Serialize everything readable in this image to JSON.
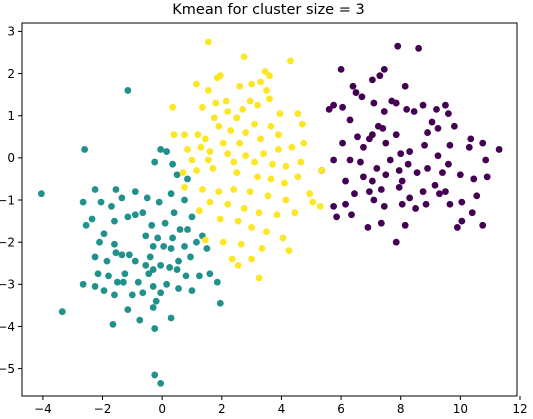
{
  "chart_data": {
    "type": "scatter",
    "title": "Kmean for cluster size = 3",
    "xlabel": "",
    "ylabel": "",
    "xlim": [
      -4.7,
      11.9
    ],
    "ylim": [
      -5.65,
      3.2
    ],
    "xticks": [
      -4,
      -2,
      0,
      2,
      4,
      6,
      8,
      10,
      12
    ],
    "yticks": [
      -5,
      -4,
      -3,
      -2,
      -1,
      0,
      1,
      2,
      3
    ],
    "xtick_labels": [
      "−4",
      "−2",
      "0",
      "2",
      "4",
      "6",
      "8",
      "10",
      "12"
    ],
    "ytick_labels": [
      "−5",
      "−4",
      "−3",
      "−2",
      "−1",
      "0",
      "1",
      "2",
      "3"
    ],
    "grid": false,
    "legend": "none",
    "series": [
      {
        "color": "#440154",
        "points": [
          [
            8.6,
            2.6
          ],
          [
            7.9,
            2.65
          ],
          [
            7.3,
            1.95
          ],
          [
            7.45,
            2.1
          ],
          [
            8.15,
            1.7
          ],
          [
            6.0,
            2.1
          ],
          [
            6.4,
            1.7
          ],
          [
            7.05,
            1.85
          ],
          [
            6.7,
            1.45
          ],
          [
            6.5,
            1.55
          ],
          [
            5.75,
            1.25
          ],
          [
            5.6,
            1.15
          ],
          [
            6.05,
            1.2
          ],
          [
            6.3,
            0.9
          ],
          [
            6.55,
            0.5
          ],
          [
            6.05,
            0.35
          ],
          [
            7.1,
            1.3
          ],
          [
            7.45,
            1.1
          ],
          [
            7.7,
            1.35
          ],
          [
            7.85,
            1.3
          ],
          [
            8.2,
            1.15
          ],
          [
            8.45,
            1.1
          ],
          [
            8.75,
            1.25
          ],
          [
            9.2,
            1.15
          ],
          [
            9.5,
            1.25
          ],
          [
            9.6,
            1.05
          ],
          [
            9.05,
            0.85
          ],
          [
            8.9,
            0.6
          ],
          [
            9.25,
            0.7
          ],
          [
            9.8,
            0.75
          ],
          [
            10.35,
            0.45
          ],
          [
            10.75,
            0.35
          ],
          [
            11.3,
            0.2
          ],
          [
            10.85,
            -0.05
          ],
          [
            10.3,
            0.25
          ],
          [
            9.65,
            0.3
          ],
          [
            9.25,
            0.05
          ],
          [
            8.8,
            0.3
          ],
          [
            8.3,
            0.15
          ],
          [
            7.85,
            0.55
          ],
          [
            7.25,
            0.75
          ],
          [
            6.95,
            0.45
          ],
          [
            6.75,
            0.25
          ],
          [
            7.5,
            0.35
          ],
          [
            8.0,
            0.1
          ],
          [
            7.05,
            0.55
          ],
          [
            7.4,
            0.7
          ],
          [
            7.65,
            -0.05
          ],
          [
            7.2,
            -0.25
          ],
          [
            6.65,
            -0.1
          ],
          [
            6.3,
            -0.05
          ],
          [
            5.75,
            -0.05
          ],
          [
            5.35,
            -0.3
          ],
          [
            6.15,
            -0.55
          ],
          [
            6.75,
            -0.45
          ],
          [
            7.5,
            -0.4
          ],
          [
            7.95,
            -0.3
          ],
          [
            8.25,
            -0.15
          ],
          [
            8.55,
            -0.35
          ],
          [
            8.9,
            -0.25
          ],
          [
            9.4,
            -0.35
          ],
          [
            9.6,
            -0.15
          ],
          [
            10.0,
            -0.4
          ],
          [
            10.45,
            -0.5
          ],
          [
            10.9,
            -0.45
          ],
          [
            10.55,
            -0.9
          ],
          [
            10.05,
            -1.05
          ],
          [
            9.5,
            -0.8
          ],
          [
            9.15,
            -0.65
          ],
          [
            8.75,
            -0.8
          ],
          [
            8.3,
            -0.95
          ],
          [
            7.95,
            -0.7
          ],
          [
            7.35,
            -0.75
          ],
          [
            6.95,
            -0.8
          ],
          [
            6.45,
            -0.85
          ],
          [
            6.15,
            -1.1
          ],
          [
            5.75,
            -1.15
          ],
          [
            5.85,
            -1.4
          ],
          [
            6.35,
            -1.35
          ],
          [
            7.1,
            -1.0
          ],
          [
            7.45,
            -1.15
          ],
          [
            8.05,
            -1.1
          ],
          [
            8.5,
            -1.2
          ],
          [
            8.85,
            -1.1
          ],
          [
            9.3,
            -0.85
          ],
          [
            9.65,
            -1.1
          ],
          [
            10.05,
            -1.5
          ],
          [
            10.4,
            -1.3
          ],
          [
            10.75,
            -1.6
          ],
          [
            9.9,
            -1.65
          ],
          [
            8.15,
            -1.6
          ],
          [
            7.35,
            -1.55
          ],
          [
            6.9,
            -1.65
          ],
          [
            7.85,
            -2.0
          ],
          [
            7.05,
            -0.55
          ],
          [
            8.05,
            -0.55
          ]
        ]
      },
      {
        "color": "#21918c",
        "points": [
          [
            -1.15,
            1.6
          ],
          [
            -2.6,
            0.2
          ],
          [
            -4.05,
            -0.85
          ],
          [
            -2.25,
            -0.75
          ],
          [
            -1.55,
            -0.75
          ],
          [
            -2.65,
            -1.05
          ],
          [
            -2.05,
            -1.05
          ],
          [
            -1.35,
            -0.95
          ],
          [
            -0.9,
            -0.8
          ],
          [
            -1.7,
            -1.15
          ],
          [
            -0.65,
            -1.3
          ],
          [
            -0.9,
            -1.35
          ],
          [
            -1.15,
            -1.4
          ],
          [
            -1.6,
            -1.5
          ],
          [
            -2.35,
            -1.45
          ],
          [
            -2.55,
            -1.6
          ],
          [
            -1.95,
            -1.8
          ],
          [
            -2.1,
            -2.0
          ],
          [
            -1.6,
            -2.05
          ],
          [
            -0.55,
            -1.85
          ],
          [
            -0.35,
            -1.6
          ],
          [
            -0.5,
            -0.95
          ],
          [
            -0.25,
            -0.1
          ],
          [
            -0.05,
            0.2
          ],
          [
            0.15,
            0.15
          ],
          [
            0.35,
            -0.15
          ],
          [
            0.5,
            -0.4
          ],
          [
            0.85,
            -0.5
          ],
          [
            0.3,
            -0.85
          ],
          [
            0.75,
            -1.0
          ],
          [
            1.0,
            -1.4
          ],
          [
            0.4,
            -1.3
          ],
          [
            0.1,
            -1.55
          ],
          [
            0.6,
            -1.7
          ],
          [
            0.85,
            -1.7
          ],
          [
            -0.15,
            -1.9
          ],
          [
            -0.3,
            -2.1
          ],
          [
            0.05,
            -2.1
          ],
          [
            0.3,
            -2.15
          ],
          [
            0.75,
            -2.1
          ],
          [
            1.15,
            -2.0
          ],
          [
            1.35,
            -1.85
          ],
          [
            1.5,
            -2.15
          ],
          [
            0.95,
            -2.35
          ],
          [
            0.55,
            -2.45
          ],
          [
            0.25,
            -2.6
          ],
          [
            -0.05,
            -2.55
          ],
          [
            -0.3,
            -2.65
          ],
          [
            -0.55,
            -2.55
          ],
          [
            -0.9,
            -2.45
          ],
          [
            -1.1,
            -2.3
          ],
          [
            -1.35,
            -2.3
          ],
          [
            -1.55,
            -2.25
          ],
          [
            -1.85,
            -2.45
          ],
          [
            -2.25,
            -2.35
          ],
          [
            -2.15,
            -2.75
          ],
          [
            -1.8,
            -2.8
          ],
          [
            -1.5,
            -2.95
          ],
          [
            -1.25,
            -2.75
          ],
          [
            -1.3,
            -2.95
          ],
          [
            -0.8,
            -2.95
          ],
          [
            -0.45,
            -2.75
          ],
          [
            -0.3,
            -3.05
          ],
          [
            0.15,
            -3.0
          ],
          [
            0.5,
            -2.65
          ],
          [
            0.8,
            -2.8
          ],
          [
            1.25,
            -2.8
          ],
          [
            1.6,
            -2.75
          ],
          [
            1.85,
            -2.95
          ],
          [
            1.0,
            -3.15
          ],
          [
            0.55,
            -3.1
          ],
          [
            -0.05,
            -3.2
          ],
          [
            -0.65,
            -3.2
          ],
          [
            -1.0,
            -3.25
          ],
          [
            -1.6,
            -3.25
          ],
          [
            -1.95,
            -3.15
          ],
          [
            -2.65,
            -3.0
          ],
          [
            -2.25,
            -3.05
          ],
          [
            -0.2,
            -3.4
          ],
          [
            -1.15,
            -3.6
          ],
          [
            -0.75,
            -3.85
          ],
          [
            -1.65,
            -3.95
          ],
          [
            -0.3,
            -3.55
          ],
          [
            0.3,
            -3.8
          ],
          [
            1.95,
            -3.45
          ],
          [
            -0.25,
            -4.05
          ],
          [
            -3.35,
            -3.65
          ],
          [
            -0.25,
            -5.15
          ],
          [
            -0.05,
            -5.35
          ],
          [
            -0.4,
            -2.35
          ],
          [
            0.35,
            -1.9
          ],
          [
            -0.1,
            -1.05
          ]
        ]
      },
      {
        "color": "#fde725",
        "points": [
          [
            1.55,
            2.75
          ],
          [
            2.75,
            2.4
          ],
          [
            4.3,
            2.3
          ],
          [
            1.95,
            1.95
          ],
          [
            1.85,
            1.9
          ],
          [
            3.45,
            2.05
          ],
          [
            3.6,
            1.95
          ],
          [
            3.3,
            1.8
          ],
          [
            1.15,
            1.75
          ],
          [
            3.0,
            1.75
          ],
          [
            2.6,
            1.7
          ],
          [
            1.55,
            1.6
          ],
          [
            3.5,
            1.6
          ],
          [
            3.6,
            1.4
          ],
          [
            2.15,
            1.35
          ],
          [
            1.8,
            1.3
          ],
          [
            2.95,
            1.35
          ],
          [
            3.2,
            1.25
          ],
          [
            2.7,
            1.15
          ],
          [
            2.2,
            1.1
          ],
          [
            2.5,
            0.95
          ],
          [
            3.1,
            0.8
          ],
          [
            1.75,
            0.95
          ],
          [
            1.35,
            1.2
          ],
          [
            0.35,
            1.2
          ],
          [
            1.9,
            0.75
          ],
          [
            2.3,
            0.65
          ],
          [
            2.8,
            0.6
          ],
          [
            3.65,
            0.75
          ],
          [
            3.95,
            1.05
          ],
          [
            4.55,
            1.05
          ],
          [
            4.7,
            0.8
          ],
          [
            3.9,
            0.55
          ],
          [
            3.3,
            0.45
          ],
          [
            2.6,
            0.35
          ],
          [
            2.05,
            0.35
          ],
          [
            1.45,
            0.45
          ],
          [
            1.2,
            0.55
          ],
          [
            0.75,
            0.55
          ],
          [
            0.4,
            0.55
          ],
          [
            0.85,
            0.2
          ],
          [
            1.3,
            0.25
          ],
          [
            1.6,
            0.15
          ],
          [
            2.2,
            0.1
          ],
          [
            2.8,
            0.05
          ],
          [
            3.4,
            0.1
          ],
          [
            3.9,
            0.2
          ],
          [
            4.35,
            0.25
          ],
          [
            4.75,
            0.35
          ],
          [
            1.0,
            -0.05
          ],
          [
            1.55,
            -0.05
          ],
          [
            2.4,
            -0.1
          ],
          [
            3.1,
            -0.1
          ],
          [
            3.7,
            -0.15
          ],
          [
            4.15,
            -0.2
          ],
          [
            4.65,
            -0.1
          ],
          [
            0.7,
            -0.35
          ],
          [
            1.15,
            -0.3
          ],
          [
            1.7,
            -0.25
          ],
          [
            2.5,
            -0.35
          ],
          [
            3.2,
            -0.45
          ],
          [
            3.65,
            -0.5
          ],
          [
            4.1,
            -0.6
          ],
          [
            4.55,
            -0.45
          ],
          [
            5.35,
            -0.3
          ],
          [
            0.75,
            -0.7
          ],
          [
            1.35,
            -0.75
          ],
          [
            1.9,
            -0.8
          ],
          [
            2.4,
            -0.75
          ],
          [
            2.95,
            -0.8
          ],
          [
            3.55,
            -0.9
          ],
          [
            4.15,
            -1.0
          ],
          [
            4.95,
            -0.85
          ],
          [
            5.05,
            -1.05
          ],
          [
            5.3,
            -1.15
          ],
          [
            1.6,
            -1.05
          ],
          [
            2.2,
            -1.1
          ],
          [
            2.75,
            -1.2
          ],
          [
            3.25,
            -1.3
          ],
          [
            3.85,
            -1.35
          ],
          [
            4.45,
            -1.3
          ],
          [
            1.25,
            -1.25
          ],
          [
            1.95,
            -1.45
          ],
          [
            2.55,
            -1.5
          ],
          [
            3.0,
            -1.65
          ],
          [
            3.5,
            -1.75
          ],
          [
            4.05,
            -1.9
          ],
          [
            1.45,
            -1.95
          ],
          [
            2.05,
            -2.0
          ],
          [
            2.65,
            -2.05
          ],
          [
            3.35,
            -2.15
          ],
          [
            4.25,
            -2.2
          ],
          [
            2.35,
            -2.4
          ],
          [
            3.0,
            -2.4
          ],
          [
            2.55,
            -2.55
          ],
          [
            3.25,
            -2.85
          ]
        ]
      }
    ]
  }
}
